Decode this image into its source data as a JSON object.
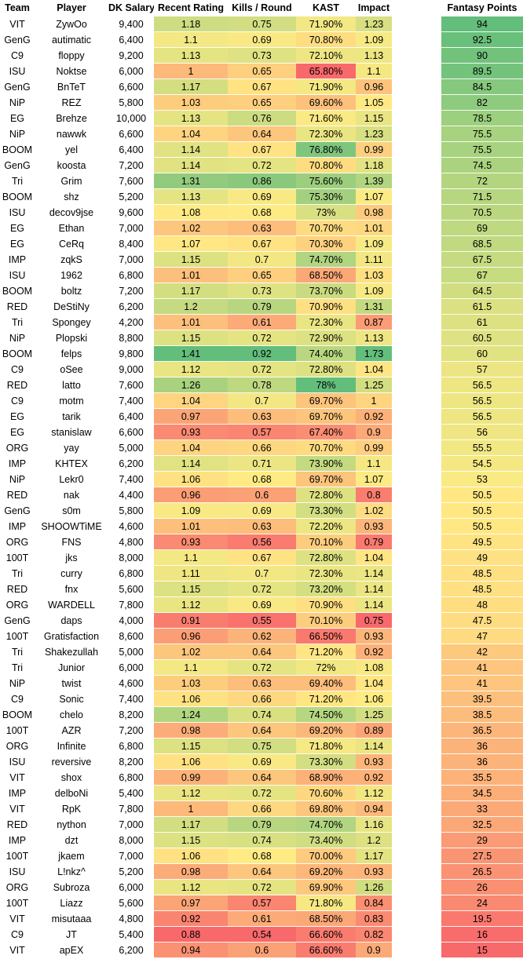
{
  "headers": {
    "team": "Team",
    "player": "Player",
    "salary": "DK Salary",
    "rating": "Recent Rating",
    "kills": "Kills / Round",
    "kast": "KAST",
    "impact": "Impact",
    "fantasy": "Fantasy Points"
  },
  "rows": [
    {
      "team": "VIT",
      "player": "ZywOo",
      "salary": "9,400",
      "rating": "1.18",
      "kills": "0.75",
      "kast": "71.90%",
      "impact": "1.23",
      "fantasy": "94"
    },
    {
      "team": "GenG",
      "player": "autimatic",
      "salary": "6,400",
      "rating": "1.1",
      "kills": "0.69",
      "kast": "70.80%",
      "impact": "1.09",
      "fantasy": "92.5"
    },
    {
      "team": "C9",
      "player": "floppy",
      "salary": "9,200",
      "rating": "1.13",
      "kills": "0.73",
      "kast": "72.10%",
      "impact": "1.13",
      "fantasy": "90"
    },
    {
      "team": "ISU",
      "player": "Noktse",
      "salary": "6,000",
      "rating": "1",
      "kills": "0.65",
      "kast": "65.80%",
      "impact": "1.1",
      "fantasy": "89.5"
    },
    {
      "team": "GenG",
      "player": "BnTeT",
      "salary": "6,600",
      "rating": "1.17",
      "kills": "0.67",
      "kast": "71.90%",
      "impact": "0.96",
      "fantasy": "84.5"
    },
    {
      "team": "NiP",
      "player": "REZ",
      "salary": "5,800",
      "rating": "1.03",
      "kills": "0.65",
      "kast": "69.60%",
      "impact": "1.05",
      "fantasy": "82"
    },
    {
      "team": "EG",
      "player": "Brehze",
      "salary": "10,000",
      "rating": "1.13",
      "kills": "0.76",
      "kast": "71.60%",
      "impact": "1.15",
      "fantasy": "78.5"
    },
    {
      "team": "NiP",
      "player": "nawwk",
      "salary": "6,600",
      "rating": "1.04",
      "kills": "0.64",
      "kast": "72.30%",
      "impact": "1.23",
      "fantasy": "75.5"
    },
    {
      "team": "BOOM",
      "player": "yel",
      "salary": "6,400",
      "rating": "1.14",
      "kills": "0.67",
      "kast": "76.80%",
      "impact": "0.99",
      "fantasy": "75.5"
    },
    {
      "team": "GenG",
      "player": "koosta",
      "salary": "7,200",
      "rating": "1.14",
      "kills": "0.72",
      "kast": "70.80%",
      "impact": "1.18",
      "fantasy": "74.5"
    },
    {
      "team": "Tri",
      "player": "Grim",
      "salary": "7,600",
      "rating": "1.31",
      "kills": "0.86",
      "kast": "75.60%",
      "impact": "1.39",
      "fantasy": "72"
    },
    {
      "team": "BOOM",
      "player": "shz",
      "salary": "5,200",
      "rating": "1.13",
      "kills": "0.69",
      "kast": "75.30%",
      "impact": "1.07",
      "fantasy": "71.5"
    },
    {
      "team": "ISU",
      "player": "decov9jse",
      "salary": "9,600",
      "rating": "1.08",
      "kills": "0.68",
      "kast": "73%",
      "impact": "0.98",
      "fantasy": "70.5"
    },
    {
      "team": "EG",
      "player": "Ethan",
      "salary": "7,000",
      "rating": "1.02",
      "kills": "0.63",
      "kast": "70.70%",
      "impact": "1.01",
      "fantasy": "69"
    },
    {
      "team": "EG",
      "player": "CeRq",
      "salary": "8,400",
      "rating": "1.07",
      "kills": "0.67",
      "kast": "70.30%",
      "impact": "1.09",
      "fantasy": "68.5"
    },
    {
      "team": "IMP",
      "player": "zqkS",
      "salary": "7,000",
      "rating": "1.15",
      "kills": "0.7",
      "kast": "74.70%",
      "impact": "1.11",
      "fantasy": "67.5"
    },
    {
      "team": "ISU",
      "player": "1962",
      "salary": "6,800",
      "rating": "1.01",
      "kills": "0.65",
      "kast": "68.50%",
      "impact": "1.03",
      "fantasy": "67"
    },
    {
      "team": "BOOM",
      "player": "boltz",
      "salary": "7,200",
      "rating": "1.17",
      "kills": "0.73",
      "kast": "73.70%",
      "impact": "1.09",
      "fantasy": "64.5"
    },
    {
      "team": "RED",
      "player": "DeStiNy",
      "salary": "6,200",
      "rating": "1.2",
      "kills": "0.79",
      "kast": "70.90%",
      "impact": "1.31",
      "fantasy": "61.5"
    },
    {
      "team": "Tri",
      "player": "Spongey",
      "salary": "4,200",
      "rating": "1.01",
      "kills": "0.61",
      "kast": "72.30%",
      "impact": "0.87",
      "fantasy": "61"
    },
    {
      "team": "NiP",
      "player": "Plopski",
      "salary": "8,800",
      "rating": "1.15",
      "kills": "0.72",
      "kast": "72.90%",
      "impact": "1.13",
      "fantasy": "60.5"
    },
    {
      "team": "BOOM",
      "player": "felps",
      "salary": "9,800",
      "rating": "1.41",
      "kills": "0.92",
      "kast": "74.40%",
      "impact": "1.73",
      "fantasy": "60"
    },
    {
      "team": "C9",
      "player": "oSee",
      "salary": "9,000",
      "rating": "1.12",
      "kills": "0.72",
      "kast": "72.80%",
      "impact": "1.04",
      "fantasy": "57"
    },
    {
      "team": "RED",
      "player": "latto",
      "salary": "7,600",
      "rating": "1.26",
      "kills": "0.78",
      "kast": "78%",
      "impact": "1.25",
      "fantasy": "56.5"
    },
    {
      "team": "C9",
      "player": "motm",
      "salary": "7,400",
      "rating": "1.04",
      "kills": "0.7",
      "kast": "69.70%",
      "impact": "1",
      "fantasy": "56.5"
    },
    {
      "team": "EG",
      "player": "tarik",
      "salary": "6,400",
      "rating": "0.97",
      "kills": "0.63",
      "kast": "69.70%",
      "impact": "0.92",
      "fantasy": "56.5"
    },
    {
      "team": "EG",
      "player": "stanislaw",
      "salary": "6,600",
      "rating": "0.93",
      "kills": "0.57",
      "kast": "67.40%",
      "impact": "0.9",
      "fantasy": "56"
    },
    {
      "team": "ORG",
      "player": "yay",
      "salary": "5,000",
      "rating": "1.04",
      "kills": "0.66",
      "kast": "70.70%",
      "impact": "0.99",
      "fantasy": "55.5"
    },
    {
      "team": "IMP",
      "player": "KHTEX",
      "salary": "6,200",
      "rating": "1.14",
      "kills": "0.71",
      "kast": "73.90%",
      "impact": "1.1",
      "fantasy": "54.5"
    },
    {
      "team": "NiP",
      "player": "Lekr0",
      "salary": "7,400",
      "rating": "1.06",
      "kills": "0.68",
      "kast": "69.70%",
      "impact": "1.07",
      "fantasy": "53"
    },
    {
      "team": "RED",
      "player": "nak",
      "salary": "4,400",
      "rating": "0.96",
      "kills": "0.6",
      "kast": "72.80%",
      "impact": "0.8",
      "fantasy": "50.5"
    },
    {
      "team": "GenG",
      "player": "s0m",
      "salary": "5,800",
      "rating": "1.09",
      "kills": "0.69",
      "kast": "73.30%",
      "impact": "1.02",
      "fantasy": "50.5"
    },
    {
      "team": "IMP",
      "player": "SHOOWTiME",
      "salary": "4,600",
      "rating": "1.01",
      "kills": "0.63",
      "kast": "72.20%",
      "impact": "0.93",
      "fantasy": "50.5"
    },
    {
      "team": "ORG",
      "player": "FNS",
      "salary": "4,800",
      "rating": "0.93",
      "kills": "0.56",
      "kast": "70.10%",
      "impact": "0.79",
      "fantasy": "49.5"
    },
    {
      "team": "100T",
      "player": "jks",
      "salary": "8,000",
      "rating": "1.1",
      "kills": "0.67",
      "kast": "72.80%",
      "impact": "1.04",
      "fantasy": "49"
    },
    {
      "team": "Tri",
      "player": "curry",
      "salary": "6,800",
      "rating": "1.11",
      "kills": "0.7",
      "kast": "72.30%",
      "impact": "1.14",
      "fantasy": "48.5"
    },
    {
      "team": "RED",
      "player": "fnx",
      "salary": "5,600",
      "rating": "1.15",
      "kills": "0.72",
      "kast": "73.20%",
      "impact": "1.14",
      "fantasy": "48.5"
    },
    {
      "team": "ORG",
      "player": "WARDELL",
      "salary": "7,800",
      "rating": "1.12",
      "kills": "0.69",
      "kast": "70.90%",
      "impact": "1.14",
      "fantasy": "48"
    },
    {
      "team": "GenG",
      "player": "daps",
      "salary": "4,000",
      "rating": "0.91",
      "kills": "0.55",
      "kast": "70.10%",
      "impact": "0.75",
      "fantasy": "47.5"
    },
    {
      "team": "100T",
      "player": "Gratisfaction",
      "salary": "8,600",
      "rating": "0.96",
      "kills": "0.62",
      "kast": "66.50%",
      "impact": "0.93",
      "fantasy": "47"
    },
    {
      "team": "Tri",
      "player": "Shakezullah",
      "salary": "5,000",
      "rating": "1.02",
      "kills": "0.64",
      "kast": "71.20%",
      "impact": "0.92",
      "fantasy": "42"
    },
    {
      "team": "Tri",
      "player": "Junior",
      "salary": "6,000",
      "rating": "1.1",
      "kills": "0.72",
      "kast": "72%",
      "impact": "1.08",
      "fantasy": "41"
    },
    {
      "team": "NiP",
      "player": "twist",
      "salary": "4,600",
      "rating": "1.03",
      "kills": "0.63",
      "kast": "69.40%",
      "impact": "1.04",
      "fantasy": "41"
    },
    {
      "team": "C9",
      "player": "Sonic",
      "salary": "7,400",
      "rating": "1.06",
      "kills": "0.66",
      "kast": "71.20%",
      "impact": "1.06",
      "fantasy": "39.5"
    },
    {
      "team": "BOOM",
      "player": "chelo",
      "salary": "8,200",
      "rating": "1.24",
      "kills": "0.74",
      "kast": "74.50%",
      "impact": "1.25",
      "fantasy": "38.5"
    },
    {
      "team": "100T",
      "player": "AZR",
      "salary": "7,200",
      "rating": "0.98",
      "kills": "0.64",
      "kast": "69.20%",
      "impact": "0.89",
      "fantasy": "36.5"
    },
    {
      "team": "ORG",
      "player": "Infinite",
      "salary": "6,800",
      "rating": "1.15",
      "kills": "0.75",
      "kast": "71.80%",
      "impact": "1.14",
      "fantasy": "36"
    },
    {
      "team": "ISU",
      "player": "reversive",
      "salary": "8,200",
      "rating": "1.06",
      "kills": "0.69",
      "kast": "73.30%",
      "impact": "0.93",
      "fantasy": "36"
    },
    {
      "team": "VIT",
      "player": "shox",
      "salary": "6,800",
      "rating": "0.99",
      "kills": "0.64",
      "kast": "68.90%",
      "impact": "0.92",
      "fantasy": "35.5"
    },
    {
      "team": "IMP",
      "player": "delboNi",
      "salary": "5,400",
      "rating": "1.12",
      "kills": "0.72",
      "kast": "70.60%",
      "impact": "1.12",
      "fantasy": "34.5"
    },
    {
      "team": "VIT",
      "player": "RpK",
      "salary": "7,800",
      "rating": "1",
      "kills": "0.66",
      "kast": "69.80%",
      "impact": "0.94",
      "fantasy": "33"
    },
    {
      "team": "RED",
      "player": "nython",
      "salary": "7,000",
      "rating": "1.17",
      "kills": "0.79",
      "kast": "74.70%",
      "impact": "1.16",
      "fantasy": "32.5"
    },
    {
      "team": "IMP",
      "player": "dzt",
      "salary": "8,000",
      "rating": "1.15",
      "kills": "0.74",
      "kast": "73.40%",
      "impact": "1.2",
      "fantasy": "29"
    },
    {
      "team": "100T",
      "player": "jkaem",
      "salary": "7,000",
      "rating": "1.06",
      "kills": "0.68",
      "kast": "70.00%",
      "impact": "1.17",
      "fantasy": "27.5"
    },
    {
      "team": "ISU",
      "player": "L!nkz^",
      "salary": "5,200",
      "rating": "0.98",
      "kills": "0.64",
      "kast": "69.20%",
      "impact": "0.93",
      "fantasy": "26.5"
    },
    {
      "team": "ORG",
      "player": "Subroza",
      "salary": "6,000",
      "rating": "1.12",
      "kills": "0.72",
      "kast": "69.90%",
      "impact": "1.26",
      "fantasy": "26"
    },
    {
      "team": "100T",
      "player": "Liazz",
      "salary": "5,600",
      "rating": "0.97",
      "kills": "0.57",
      "kast": "71.80%",
      "impact": "0.84",
      "fantasy": "24"
    },
    {
      "team": "VIT",
      "player": "misutaaa",
      "salary": "4,800",
      "rating": "0.92",
      "kills": "0.61",
      "kast": "68.50%",
      "impact": "0.83",
      "fantasy": "19.5"
    },
    {
      "team": "C9",
      "player": "JT",
      "salary": "5,400",
      "rating": "0.88",
      "kills": "0.54",
      "kast": "66.60%",
      "impact": "0.82",
      "fantasy": "16"
    },
    {
      "team": "VIT",
      "player": "apEX",
      "salary": "6,200",
      "rating": "0.94",
      "kills": "0.6",
      "kast": "66.60%",
      "impact": "0.9",
      "fantasy": "15"
    }
  ],
  "color_scale": {
    "low": "#f8696b",
    "mid": "#ffeb84",
    "high": "#63be7b"
  }
}
